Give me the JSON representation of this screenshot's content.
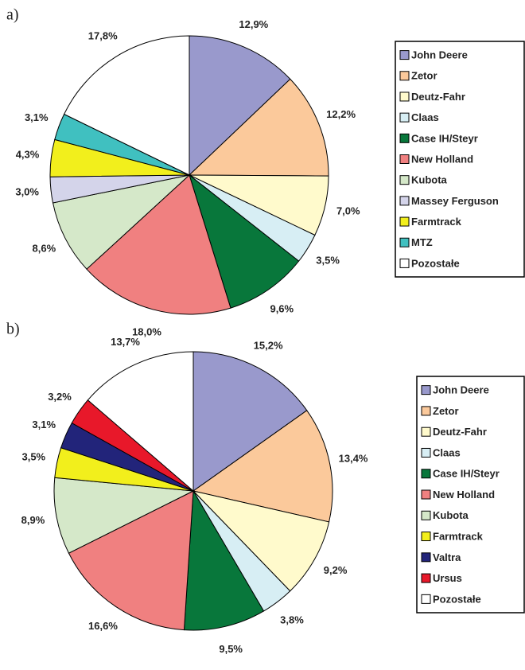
{
  "chart_data": [
    {
      "type": "pie",
      "panel": "a)",
      "categories": [
        "John Deere",
        "Zetor",
        "Deutz-Fahr",
        "Claas",
        "Case IH/Steyr",
        "New Holland",
        "Kubota",
        "Massey Ferguson",
        "Farmtrack",
        "MTZ",
        "Pozostałe"
      ],
      "values": [
        12.9,
        12.2,
        7.0,
        3.5,
        9.6,
        18.0,
        8.6,
        3.0,
        4.3,
        3.1,
        17.8
      ],
      "value_labels": [
        "12,9%",
        "12,2%",
        "7,0%",
        "3,5%",
        "9,6%",
        "18,0%",
        "8,6%",
        "3,0%",
        "4,3%",
        "3,1%",
        "17,8%"
      ],
      "colors": [
        "#9999cc",
        "#fbc99b",
        "#fffacc",
        "#d7eef4",
        "#08773b",
        "#f08080",
        "#d5e8c9",
        "#d4d4ea",
        "#f2ef1c",
        "#40c0c0",
        "#ffffff"
      ]
    },
    {
      "type": "pie",
      "panel": "b)",
      "categories": [
        "John Deere",
        "Zetor",
        "Deutz-Fahr",
        "Claas",
        "Case IH/Steyr",
        "New Holland",
        "Kubota",
        "Farmtrack",
        "Valtra",
        "Ursus",
        "Pozostałe"
      ],
      "values": [
        15.2,
        13.4,
        9.2,
        3.8,
        9.5,
        16.6,
        8.9,
        3.5,
        3.1,
        3.2,
        13.7
      ],
      "value_labels": [
        "15,2%",
        "13,4%",
        "9,2%",
        "3,8%",
        "9,5%",
        "16,6%",
        "8,9%",
        "3,5%",
        "3,1%",
        "3,2%",
        "13,7%"
      ],
      "colors": [
        "#9999cc",
        "#fbc99b",
        "#fffacc",
        "#d7eef4",
        "#08773b",
        "#f08080",
        "#d5e8c9",
        "#f2ef1c",
        "#22247a",
        "#e8182a",
        "#ffffff"
      ]
    }
  ]
}
